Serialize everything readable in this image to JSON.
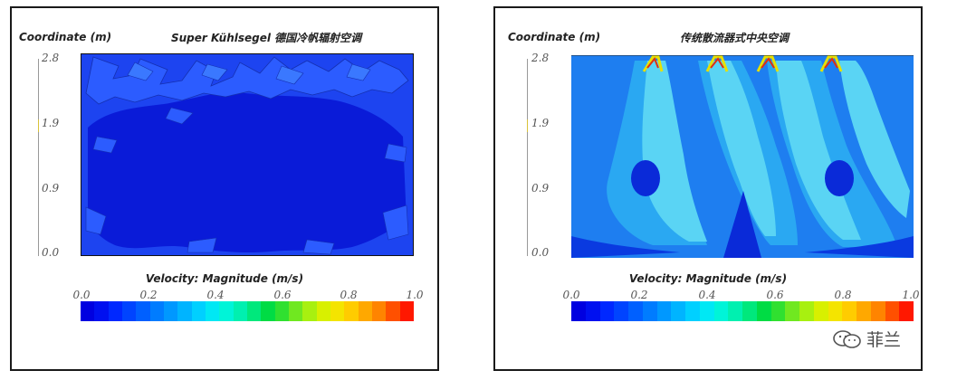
{
  "chart_data": [
    {
      "type": "heatmap",
      "title": "Super Kühlsegel 德国冷帆辐射空调",
      "ylabel": "Coordinate (m)",
      "y_ticks": [
        "2.8",
        "1.9",
        "0.9",
        "0.0"
      ],
      "colorbar_title": "Velocity: Magnitude (m/s)",
      "colorbar_ticks": [
        "0.0",
        "0.2",
        "0.4",
        "0.6",
        "0.8",
        "1.0"
      ],
      "colorbar_range": [
        0.0,
        1.0
      ],
      "dominant_velocity": 0.05
    },
    {
      "type": "heatmap",
      "title": "传统散流器式中央空调",
      "ylabel": "Coordinate (m)",
      "y_ticks": [
        "2.8",
        "1.9",
        "0.9",
        "0.0"
      ],
      "colorbar_title": "Velocity: Magnitude (m/s)",
      "colorbar_ticks": [
        "0.0",
        "0.2",
        "0.4",
        "0.6",
        "0.8",
        "1.0"
      ],
      "colorbar_range": [
        0.0,
        1.0
      ],
      "diffuser_count": 4,
      "max_velocity_near_diffusers": 1.0
    }
  ],
  "colorbar_colors": [
    "#0000e0",
    "#0010f0",
    "#0028ff",
    "#0044ff",
    "#0060ff",
    "#007cff",
    "#0098ff",
    "#00b4ff",
    "#00d0ff",
    "#00e8f4",
    "#00f4d8",
    "#00f0b0",
    "#00e87c",
    "#00dc44",
    "#30e030",
    "#70e820",
    "#a8f010",
    "#d8f000",
    "#f4e400",
    "#ffcc00",
    "#ffa800",
    "#ff8400",
    "#ff5000",
    "#ff1800"
  ],
  "watermark": {
    "text": "菲兰",
    "icon": "wechat-icon"
  }
}
